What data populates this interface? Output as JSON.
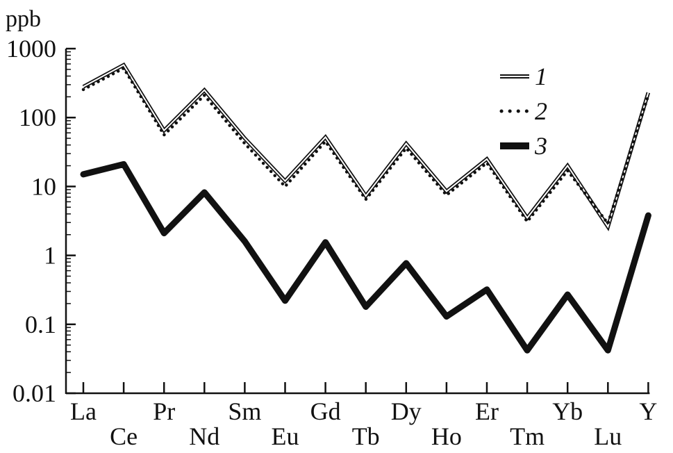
{
  "chart_data": {
    "type": "line",
    "yscale": "log",
    "ylim": [
      0.01,
      1000
    ],
    "ylabel": "ppb",
    "xlabel": "",
    "title": "",
    "grid": false,
    "legend_position": "top-right",
    "categories": [
      "La",
      "Ce",
      "Pr",
      "Nd",
      "Sm",
      "Eu",
      "Gd",
      "Tb",
      "Dy",
      "Ho",
      "Er",
      "Tm",
      "Yb",
      "Lu",
      "Y"
    ],
    "yticks": [
      1000,
      100,
      10,
      1,
      0.1,
      0.01
    ],
    "ytick_labels": [
      "1000",
      "100",
      "10",
      "1",
      "0.1",
      "0.01"
    ],
    "series": [
      {
        "name": "1",
        "style": "double",
        "values": [
          280,
          580,
          65,
          250,
          50,
          12,
          52,
          7.3,
          42,
          8.5,
          25,
          3.5,
          20,
          2.6,
          230
        ]
      },
      {
        "name": "2",
        "style": "dotted",
        "values": [
          255,
          520,
          56,
          210,
          42,
          10,
          45,
          6.5,
          36,
          7.5,
          22,
          3.1,
          17,
          2.9,
          210
        ]
      },
      {
        "name": "3",
        "style": "thick",
        "values": [
          15,
          21,
          2.1,
          8.2,
          1.6,
          0.22,
          1.55,
          0.18,
          0.77,
          0.13,
          0.32,
          0.042,
          0.27,
          0.042,
          3.8
        ]
      }
    ],
    "colors": {
      "line": "#111111",
      "background": "#ffffff"
    }
  }
}
